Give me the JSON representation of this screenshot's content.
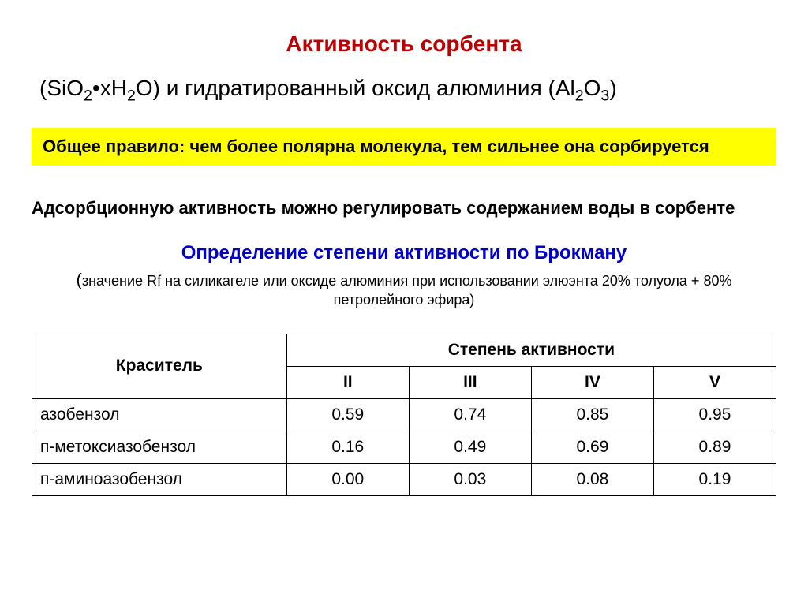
{
  "title": "Активность сорбента",
  "formula_prefix": "(SiO",
  "formula_mid1": "•xH",
  "formula_mid2": "O) и гидратированный оксид алюминия (Al",
  "formula_mid3": "O",
  "formula_suffix": ")",
  "sub2a": "2",
  "sub2b": "2",
  "sub2c": "2",
  "sub3": "3",
  "rule": "Общее правило: чем более полярна молекула, тем сильнее она сорбируется",
  "regulation": "Адсорбционную активность можно регулировать содержанием воды в сорбенте",
  "brockman_title": "Определение степени активности по Брокману",
  "brockman_note_open": "(",
  "brockman_note": "значение Rf  на силикагеле или оксиде алюминия при использовании элюэнта 20% толуола + 80% петролейного эфира)",
  "table": {
    "header_dye": "Краситель",
    "header_activity": "Степень активности",
    "cols": {
      "c0": "II",
      "c1": "III",
      "c2": "IV",
      "c3": "V"
    },
    "rows": {
      "r0": {
        "label": "азобензол",
        "v0": "0.59",
        "v1": "0.74",
        "v2": "0.85",
        "v3": "0.95"
      },
      "r1": {
        "label": "п-метоксиазобензол",
        "v0": "0.16",
        "v1": "0.49",
        "v2": "0.69",
        "v3": "0.89"
      },
      "r2": {
        "label": "п-аминоазобензол",
        "v0": "0.00",
        "v1": "0.03",
        "v2": "0.08",
        "v3": "0.19"
      }
    }
  },
  "colors": {
    "title": "#c00000",
    "highlight_bg": "#ffff00",
    "brockman": "#0000cc",
    "text": "#000000",
    "border": "#000000"
  }
}
